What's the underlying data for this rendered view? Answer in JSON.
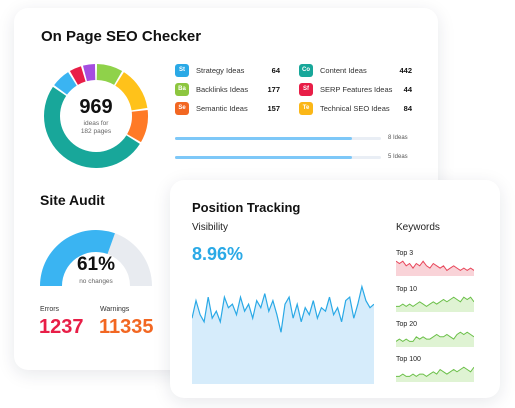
{
  "seo_checker": {
    "title": "On Page SEO Checker",
    "total": "969",
    "total_caption_1": "ideas for",
    "total_caption_2": "182 pages",
    "donut_segments": [
      {
        "color": "#8fd24a",
        "value": 8
      },
      {
        "color": "#ffc21a",
        "value": 13
      },
      {
        "color": "#ff7a26",
        "value": 10
      },
      {
        "color": "#18a79a",
        "value": 47
      },
      {
        "color": "#3ab4f2",
        "value": 6
      },
      {
        "color": "#e81e47",
        "value": 4
      },
      {
        "color": "#a54de0",
        "value": 4
      }
    ],
    "ideas": [
      {
        "badge": "St",
        "label": "Strategy Ideas",
        "count": "64",
        "color": "#2aa9e6"
      },
      {
        "badge": "Ba",
        "label": "Backlinks Ideas",
        "count": "177",
        "color": "#8dc63f"
      },
      {
        "badge": "Se",
        "label": "Semantic Ideas",
        "count": "157",
        "color": "#f26722"
      },
      {
        "badge": "Co",
        "label": "Content Ideas",
        "count": "442",
        "color": "#18a79a"
      },
      {
        "badge": "Sf",
        "label": "SERP Features Ideas",
        "count": "44",
        "color": "#e81e47"
      },
      {
        "badge": "Te",
        "label": "Technical SEO Ideas",
        "count": "84",
        "color": "#fbb717"
      }
    ],
    "bars": [
      {
        "label": "8 Ideas",
        "fill": 0.86
      },
      {
        "label": "5 Ideas",
        "fill": 0.86
      }
    ]
  },
  "site_audit": {
    "title": "Site Audit",
    "score": "61%",
    "score_caption": "no changes",
    "score_value": 0.61,
    "errors_label": "Errors",
    "errors_value": "1237",
    "warnings_label": "Warnings",
    "warnings_value": "11335"
  },
  "position_tracking": {
    "title": "Position Tracking",
    "visibility_label": "Visibility",
    "visibility_value": "8.96%",
    "visibility_series": [
      8.3,
      8.8,
      8.4,
      8.2,
      8.9,
      8.3,
      8.5,
      8.2,
      8.9,
      8.6,
      8.7,
      8.4,
      8.9,
      8.5,
      8.7,
      8.3,
      8.8,
      8.6,
      9.0,
      8.5,
      8.8,
      8.4,
      7.9,
      8.7,
      8.9,
      8.3,
      8.7,
      8.2,
      8.6,
      8.4,
      8.8,
      8.3,
      8.6,
      8.5,
      8.9,
      8.4,
      8.6,
      8.2,
      8.8,
      8.9,
      8.3,
      8.7,
      9.2,
      8.8,
      8.6,
      8.7
    ],
    "keywords_title": "Keywords",
    "keywords": [
      {
        "label": "Top 3",
        "color": "#e8475b",
        "fill": "#f9d3d8",
        "series": [
          6,
          5,
          6,
          4,
          5,
          3,
          5,
          4,
          6,
          4,
          3,
          5,
          4,
          3,
          4,
          2,
          3,
          4,
          3,
          2,
          3,
          2,
          3,
          2
        ]
      },
      {
        "label": "Top 10",
        "color": "#6cc04a",
        "fill": "#dff3d3",
        "series": [
          2,
          2,
          3,
          2,
          3,
          2,
          3,
          4,
          3,
          2,
          3,
          4,
          3,
          4,
          5,
          4,
          5,
          6,
          5,
          4,
          6,
          5,
          6,
          4
        ]
      },
      {
        "label": "Top 20",
        "color": "#6cc04a",
        "fill": "#dff3d3",
        "series": [
          2,
          3,
          2,
          3,
          2,
          2,
          4,
          3,
          4,
          3,
          3,
          4,
          5,
          4,
          4,
          5,
          4,
          3,
          5,
          6,
          5,
          6,
          5,
          4
        ]
      },
      {
        "label": "Top 100",
        "color": "#6cc04a",
        "fill": "#dff3d3",
        "series": [
          2,
          2,
          3,
          2,
          2,
          3,
          2,
          3,
          3,
          2,
          3,
          4,
          3,
          5,
          4,
          3,
          4,
          5,
          4,
          5,
          6,
          5,
          4,
          6
        ]
      }
    ]
  }
}
